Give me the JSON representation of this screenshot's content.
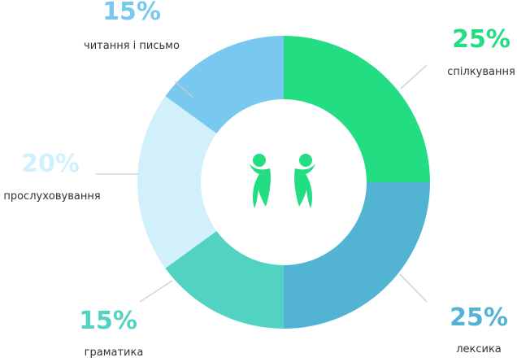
{
  "chart_data": {
    "type": "pie",
    "variant": "donut",
    "categories": [
      "спілкування",
      "лексика",
      "граматика",
      "прослуховування",
      "читання і письмо"
    ],
    "values": [
      25,
      25,
      15,
      20,
      15
    ],
    "value_labels": [
      "25%",
      "25%",
      "15%",
      "20%",
      "15%"
    ],
    "colors": [
      "#22DD82",
      "#52B3D3",
      "#52D3C1",
      "#D2F0FC",
      "#79C8EF"
    ],
    "label_colors": [
      "#22DD82",
      "#52B3D3",
      "#52D3C1",
      "#D2F0FC",
      "#79C8EF"
    ],
    "start": "top",
    "direction": "clockwise",
    "center_icon": "two-people-icon",
    "center_icon_color": "#22DD82",
    "leader_color": "#cccccc"
  }
}
